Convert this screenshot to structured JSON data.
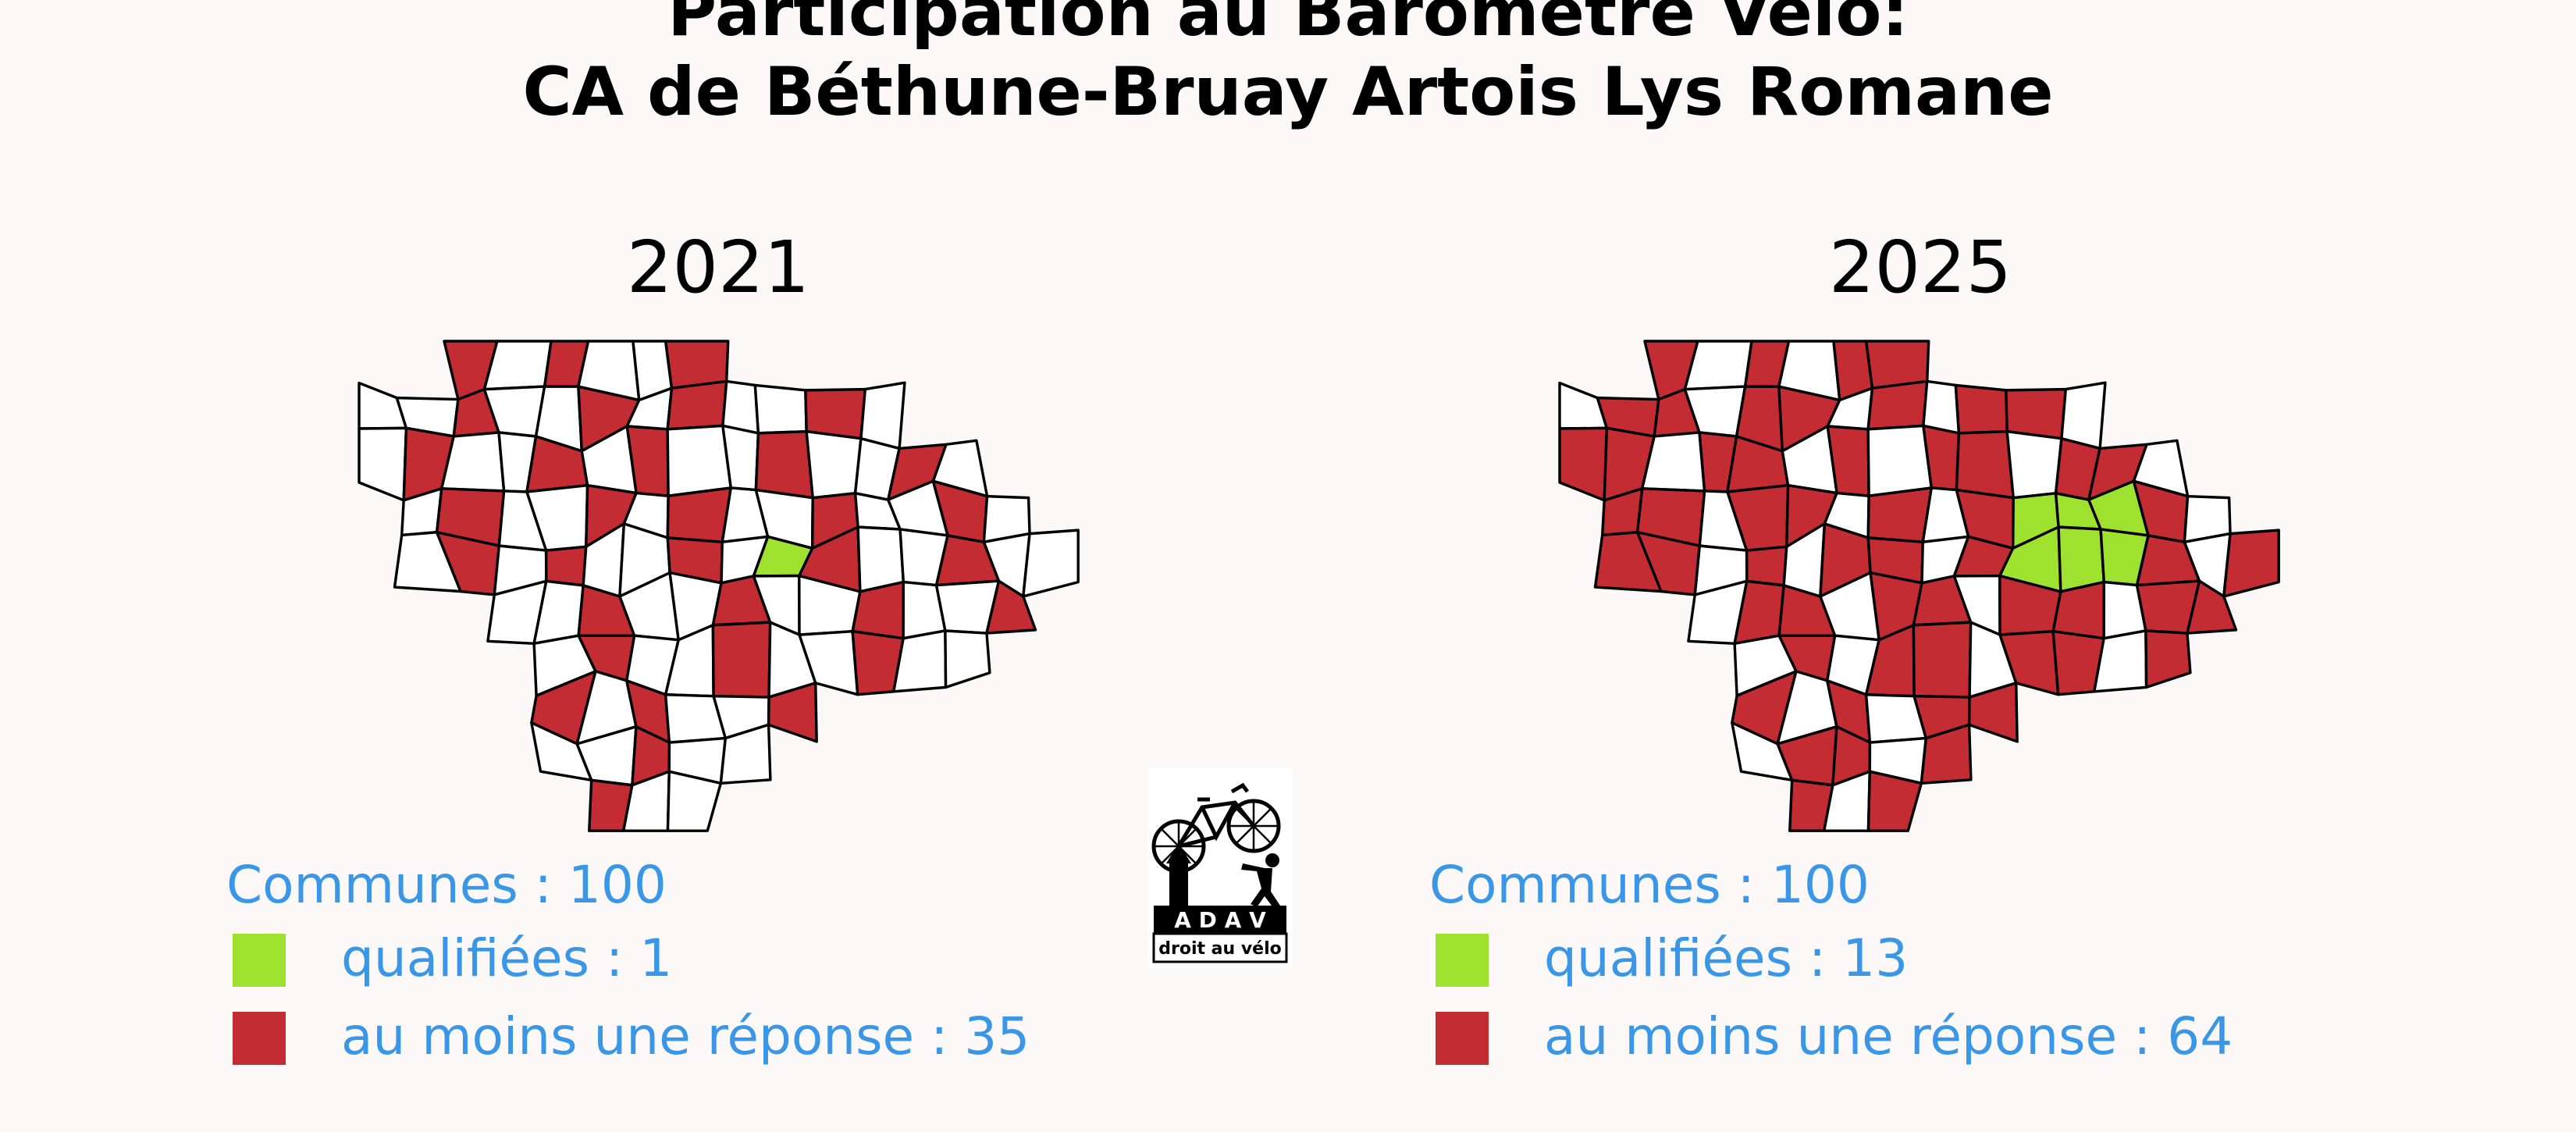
{
  "title": {
    "line1": "Participation au Baromètre Vélo:",
    "line2": "CA de Béthune-Bruay Artois Lys Romane"
  },
  "colors": {
    "background": "#fcf8f7",
    "qualified": "#9ee12f",
    "responded": "#c42c34",
    "none": "#ffffff",
    "outline": "#000000",
    "legend_text": "#3a97e8"
  },
  "panels": [
    {
      "year": "2021",
      "communes_label": "Communes : 100",
      "qualified_label": "qualifiées : 1",
      "responded_label": "au moins une réponse : 35",
      "qualified_count": 1,
      "responded_count": 35,
      "communes_total": 100
    },
    {
      "year": "2025",
      "communes_label": "Communes : 100",
      "qualified_label": "qualifiées : 13",
      "responded_label": "au moins une réponse : 64",
      "qualified_count": 13,
      "responded_count": 64,
      "communes_total": 100
    }
  ],
  "logo": {
    "top_text": "A D A V",
    "bottom_text": "droit au vélo"
  }
}
